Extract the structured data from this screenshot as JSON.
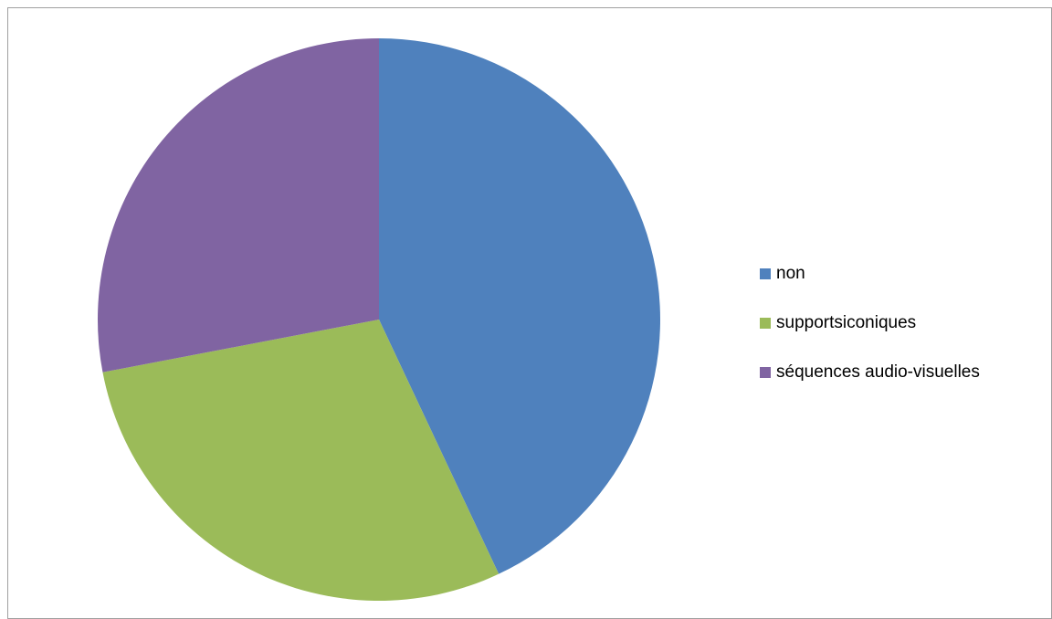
{
  "chart_data": {
    "type": "pie",
    "title": "",
    "categories": [
      "non",
      "supportsiconiques",
      "séquences audio-visuelles"
    ],
    "values": [
      43,
      29,
      28
    ],
    "colors": [
      "#4F81BD",
      "#9BBB59",
      "#8064A2"
    ],
    "start_angle_deg": 0,
    "direction": "clockwise",
    "legend_position": "right"
  }
}
